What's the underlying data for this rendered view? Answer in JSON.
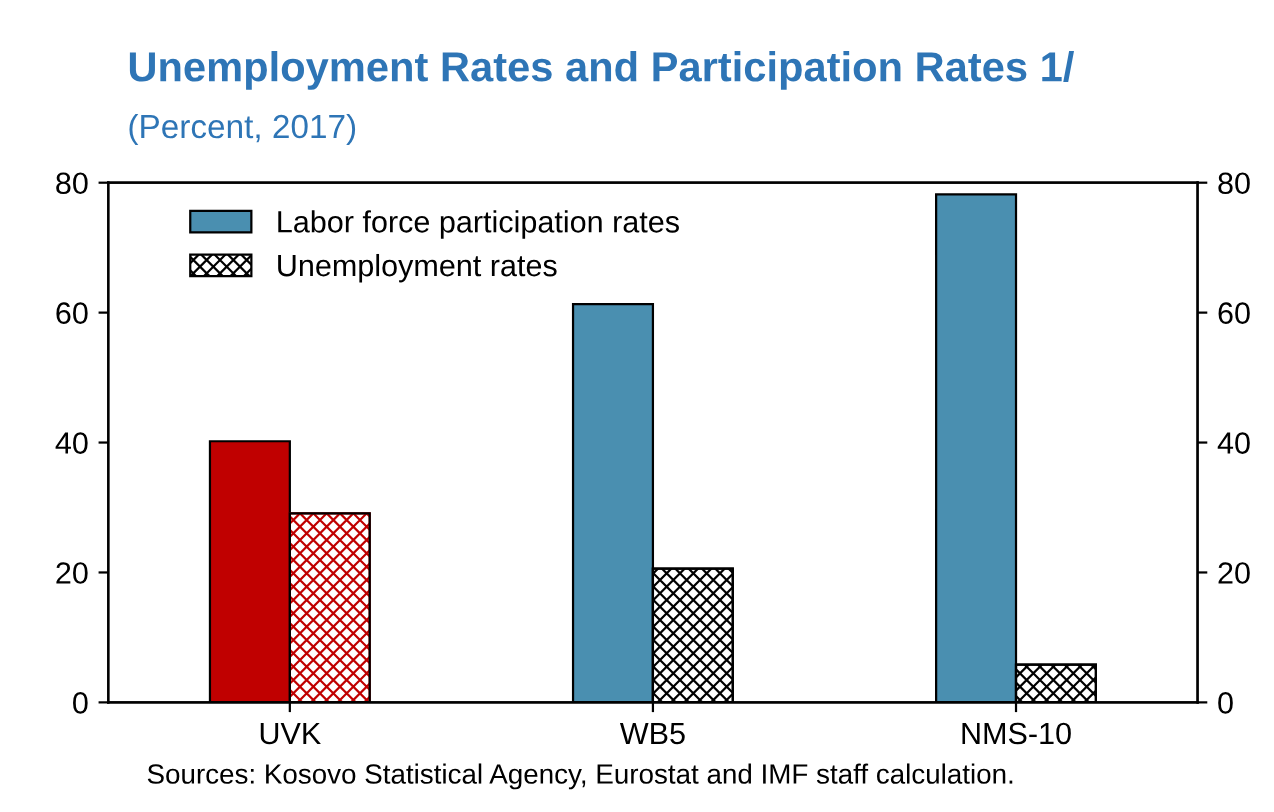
{
  "chart_data": {
    "type": "bar",
    "title": "Unemployment Rates and Participation Rates 1/",
    "subtitle": "(Percent, 2017)",
    "categories": [
      "UVK",
      "WB5",
      "NMS-10"
    ],
    "series": [
      {
        "name": "Labor force participation rates",
        "color": "#4a8fb0",
        "colors": [
          "#c00000",
          "#4a8fb0",
          "#4a8fb0"
        ],
        "values": [
          40.2,
          61.3,
          78.2
        ]
      },
      {
        "name": "Unemployment rates",
        "color": "#000000",
        "colors": [
          "#c00000",
          "#000000",
          "#000000"
        ],
        "values": [
          29.1,
          20.6,
          5.8
        ]
      }
    ],
    "ylim": [
      0,
      80
    ],
    "yticks": [
      0,
      20,
      40,
      60,
      80
    ],
    "y2lim": [
      0,
      80
    ],
    "y2ticks": [
      0,
      20,
      40,
      60,
      80
    ],
    "grid": false,
    "legend": "top left",
    "annotations": [
      "Sources: Kosovo Statistical Agency, Eurostat and IMF staff calculation."
    ]
  }
}
